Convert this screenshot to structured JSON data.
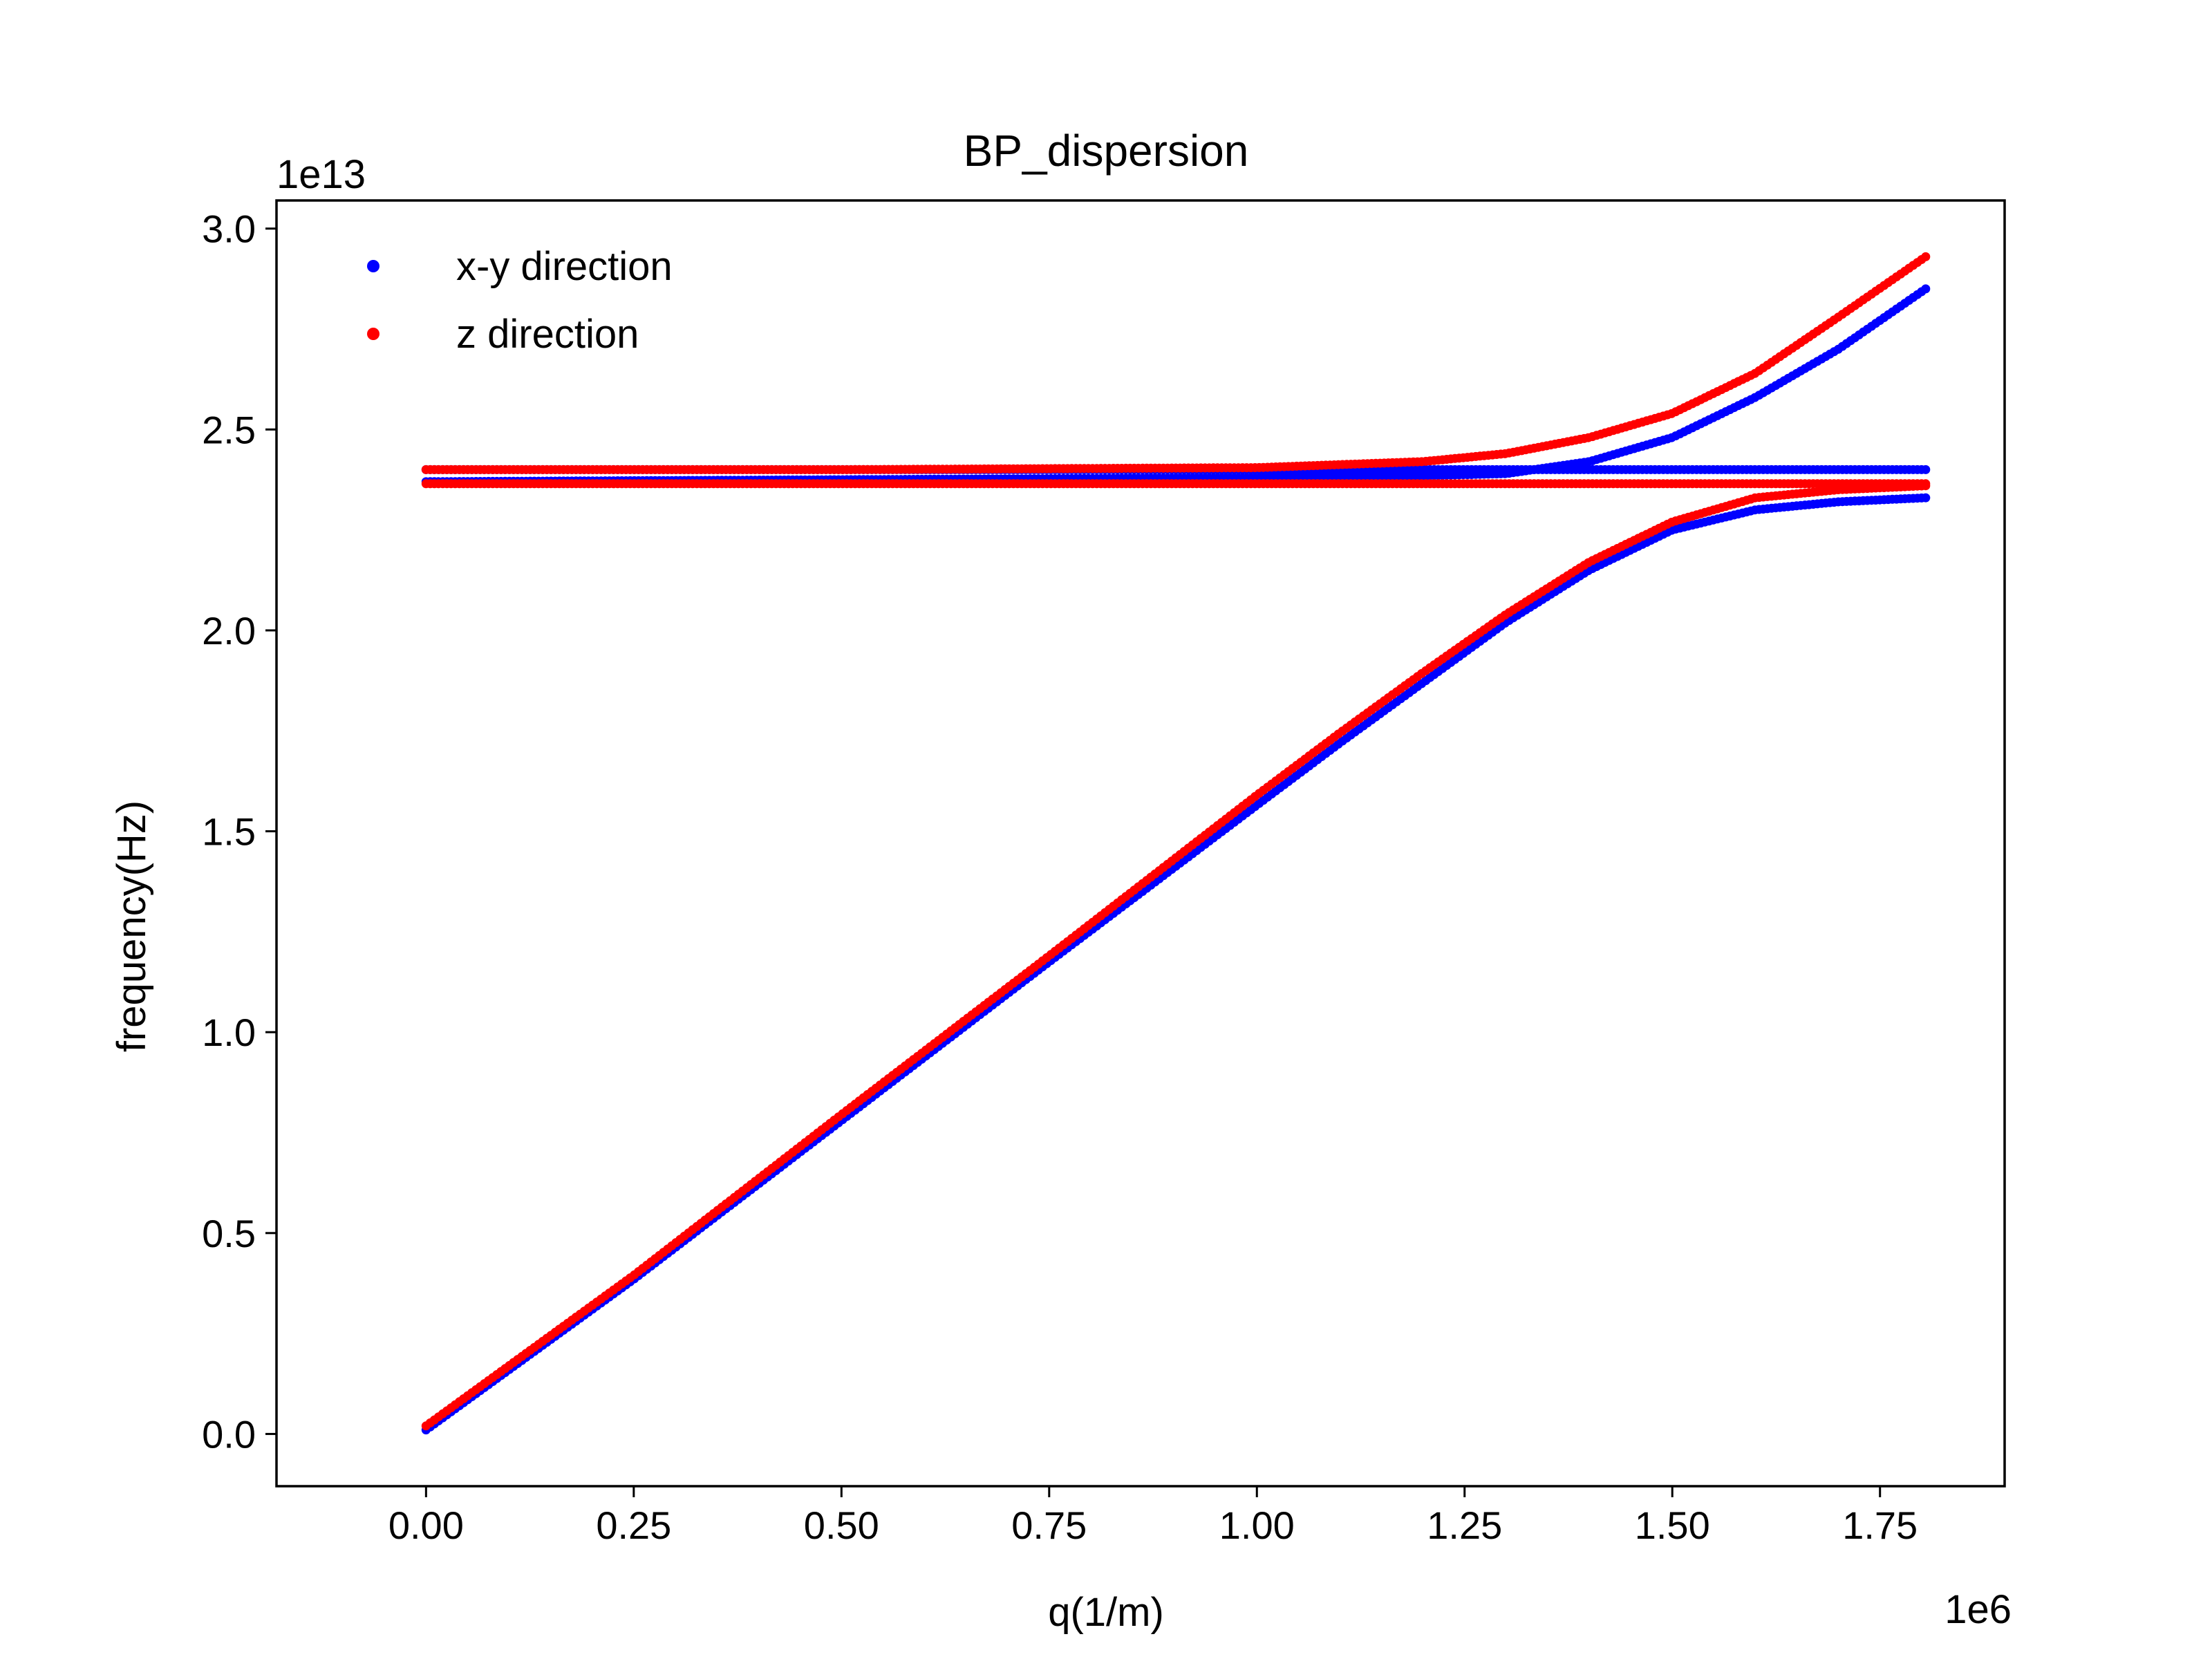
{
  "chart_data": {
    "type": "scatter",
    "title": "BP_dispersion",
    "xlabel": "q(1/m)",
    "ylabel": "frequency(Hz)",
    "x_multiplier_label": "1e6",
    "y_multiplier_label": "1e13",
    "x_scale": 1000000,
    "y_scale": 10000000000000,
    "xlim": [
      -0.18,
      1.9
    ],
    "ylim": [
      -0.13,
      3.07
    ],
    "x_ticks": [
      0.0,
      0.25,
      0.5,
      0.75,
      1.0,
      1.25,
      1.5,
      1.75
    ],
    "x_tick_labels": [
      "0.00",
      "0.25",
      "0.50",
      "0.75",
      "1.00",
      "1.25",
      "1.50",
      "1.75"
    ],
    "y_ticks": [
      0.0,
      0.5,
      1.0,
      1.5,
      2.0,
      2.5,
      3.0
    ],
    "y_tick_labels": [
      "0.0",
      "0.5",
      "1.0",
      "1.5",
      "2.0",
      "2.5",
      "3.0"
    ],
    "grid": false,
    "legend_position": "top-left",
    "x_range": [
      0.0,
      1.805
    ],
    "series": [
      {
        "name": "x-y direction",
        "color": "#0000ff",
        "branches": [
          {
            "x": [
              0.0,
              0.25,
              0.5,
              0.75,
              1.0,
              1.1,
              1.2,
              1.3,
              1.4,
              1.5,
              1.6,
              1.7,
              1.805
            ],
            "y": [
              0.01,
              0.385,
              0.78,
              1.175,
              1.565,
              1.72,
              1.87,
              2.02,
              2.15,
              2.25,
              2.3,
              2.32,
              2.33
            ]
          },
          {
            "x": [
              0.0,
              0.4,
              0.8,
              1.805
            ],
            "y": [
              2.4,
              2.4,
              2.4,
              2.4
            ]
          },
          {
            "x": [
              0.0,
              0.5,
              1.0,
              1.2,
              1.3,
              1.4,
              1.5,
              1.6,
              1.7,
              1.805
            ],
            "y": [
              2.37,
              2.375,
              2.38,
              2.385,
              2.39,
              2.42,
              2.48,
              2.58,
              2.7,
              2.85
            ]
          }
        ]
      },
      {
        "name": "z direction",
        "color": "#ff0000",
        "branches": [
          {
            "x": [
              0.0,
              0.25,
              0.5,
              0.75,
              1.0,
              1.1,
              1.2,
              1.3,
              1.4,
              1.5,
              1.6,
              1.7,
              1.805
            ],
            "y": [
              0.02,
              0.395,
              0.795,
              1.19,
              1.59,
              1.745,
              1.895,
              2.04,
              2.17,
              2.27,
              2.33,
              2.35,
              2.36
            ]
          },
          {
            "x": [
              0.0,
              0.4,
              0.8,
              1.805
            ],
            "y": [
              2.365,
              2.365,
              2.365,
              2.365
            ]
          },
          {
            "x": [
              0.0,
              0.5,
              1.0,
              1.2,
              1.3,
              1.4,
              1.5,
              1.6,
              1.7,
              1.805
            ],
            "y": [
              2.4,
              2.4,
              2.405,
              2.42,
              2.44,
              2.48,
              2.54,
              2.64,
              2.78,
              2.93
            ]
          }
        ]
      }
    ]
  }
}
